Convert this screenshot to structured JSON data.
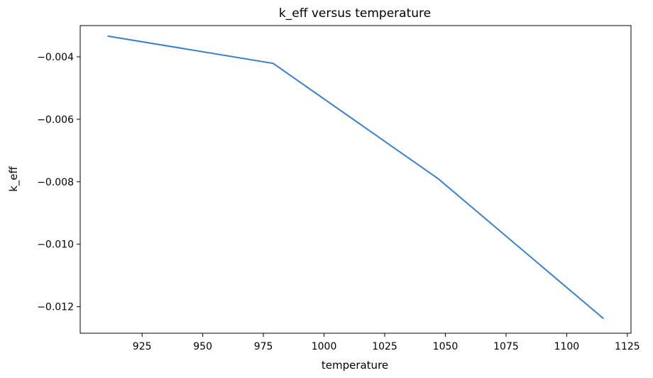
{
  "chart_data": {
    "type": "line",
    "title": "k_eff versus temperature",
    "xlabel": "temperature",
    "ylabel": "k_eff",
    "x": [
      911,
      979,
      1047,
      1115
    ],
    "series": [
      {
        "values": [
          -0.00334,
          -0.00421,
          -0.0079,
          -0.01237
        ]
      }
    ],
    "xlim": [
      899.5,
      1126.5
    ],
    "ylim": [
      -0.01285,
      -0.003
    ],
    "xticks": [
      925,
      950,
      975,
      1000,
      1025,
      1050,
      1075,
      1100,
      1125
    ],
    "xtick_labels": [
      "925",
      "950",
      "975",
      "1000",
      "1025",
      "1050",
      "1075",
      "1100",
      "1125"
    ],
    "yticks": [
      -0.004,
      -0.006,
      -0.008,
      -0.01,
      -0.012
    ],
    "ytick_labels": [
      "−0.004",
      "−0.006",
      "−0.008",
      "−0.010",
      "−0.012"
    ],
    "grid": false,
    "legend": "none",
    "colors": {
      "series": "#3b7fc4"
    }
  }
}
